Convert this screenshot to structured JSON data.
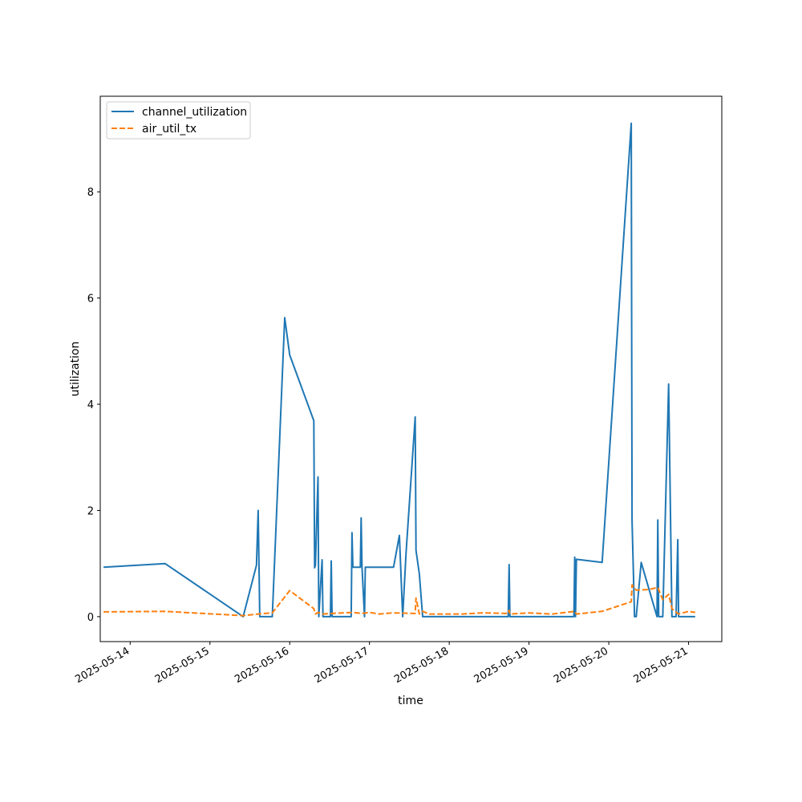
{
  "chart_data": {
    "type": "line",
    "xlabel": "time",
    "ylabel": "utilization",
    "xlim": [
      "2025-05-13T15:00",
      "2025-05-21T10:00"
    ],
    "ylim": [
      -0.47,
      9.8
    ],
    "x_ticks": [
      "2025-05-14",
      "2025-05-15",
      "2025-05-16",
      "2025-05-17",
      "2025-05-18",
      "2025-05-19",
      "2025-05-20",
      "2025-05-21"
    ],
    "y_ticks": [
      0,
      2,
      4,
      6,
      8
    ],
    "y_tick_labels": [
      "0",
      "2",
      "4",
      "6",
      "8"
    ],
    "grid": false,
    "legend_position": "top-left",
    "series": [
      {
        "name": "channel_utilization",
        "color": "#1f77b4",
        "style": "solid",
        "points": [
          [
            "2025-05-13T16:00",
            0.93
          ],
          [
            "2025-05-14T10:30",
            1.0
          ],
          [
            "2025-05-15T10:00",
            0.0
          ],
          [
            "2025-05-15T14:00",
            0.97
          ],
          [
            "2025-05-15T14:30",
            2.0
          ],
          [
            "2025-05-15T15:00",
            0.0
          ],
          [
            "2025-05-15T18:45",
            0.0
          ],
          [
            "2025-05-15T22:30",
            5.63
          ],
          [
            "2025-05-16T00:00",
            4.93
          ],
          [
            "2025-05-16T07:15",
            3.69
          ],
          [
            "2025-05-16T07:30",
            0.92
          ],
          [
            "2025-05-16T07:45",
            0.97
          ],
          [
            "2025-05-16T08:30",
            2.63
          ],
          [
            "2025-05-16T08:45",
            0.0
          ],
          [
            "2025-05-16T09:45",
            1.07
          ],
          [
            "2025-05-16T10:00",
            0.0
          ],
          [
            "2025-05-16T12:15",
            0.0
          ],
          [
            "2025-05-16T12:30",
            1.05
          ],
          [
            "2025-05-16T12:45",
            0.0
          ],
          [
            "2025-05-16T18:30",
            0.0
          ],
          [
            "2025-05-16T18:45",
            1.58
          ],
          [
            "2025-05-16T19:00",
            0.93
          ],
          [
            "2025-05-16T21:15",
            0.93
          ],
          [
            "2025-05-16T21:30",
            1.86
          ],
          [
            "2025-05-16T21:45",
            0.93
          ],
          [
            "2025-05-16T22:30",
            0.0
          ],
          [
            "2025-05-16T22:45",
            0.93
          ],
          [
            "2025-05-17T07:15",
            0.93
          ],
          [
            "2025-05-17T09:00",
            1.53
          ],
          [
            "2025-05-17T10:00",
            0.0
          ],
          [
            "2025-05-17T11:00",
            1.2
          ],
          [
            "2025-05-17T13:45",
            3.76
          ],
          [
            "2025-05-17T14:00",
            1.25
          ],
          [
            "2025-05-17T15:00",
            0.8
          ],
          [
            "2025-05-17T16:00",
            0.0
          ],
          [
            "2025-05-18T17:45",
            0.0
          ],
          [
            "2025-05-18T18:00",
            0.98
          ],
          [
            "2025-05-18T18:15",
            0.0
          ],
          [
            "2025-05-19T13:30",
            0.0
          ],
          [
            "2025-05-19T13:45",
            1.12
          ],
          [
            "2025-05-19T14:00",
            0.0
          ],
          [
            "2025-05-19T14:15",
            1.08
          ],
          [
            "2025-05-19T22:00",
            1.02
          ],
          [
            "2025-05-20T06:45",
            9.29
          ],
          [
            "2025-05-20T07:00",
            1.8
          ],
          [
            "2025-05-20T07:45",
            0.0
          ],
          [
            "2025-05-20T08:15",
            0.0
          ],
          [
            "2025-05-20T09:45",
            1.02
          ],
          [
            "2025-05-20T14:30",
            0.0
          ],
          [
            "2025-05-20T14:45",
            1.82
          ],
          [
            "2025-05-20T15:00",
            0.0
          ],
          [
            "2025-05-20T16:15",
            0.0
          ],
          [
            "2025-05-20T18:00",
            4.38
          ],
          [
            "2025-05-20T19:00",
            0.0
          ],
          [
            "2025-05-20T20:15",
            0.0
          ],
          [
            "2025-05-20T20:45",
            1.45
          ],
          [
            "2025-05-20T21:00",
            0.0
          ],
          [
            "2025-05-21T02:00",
            0.0
          ]
        ]
      },
      {
        "name": "air_util_tx",
        "color": "#ff7f0e",
        "style": "dashed",
        "points": [
          [
            "2025-05-13T16:00",
            0.09
          ],
          [
            "2025-05-14T10:30",
            0.1
          ],
          [
            "2025-05-15T10:00",
            0.02
          ],
          [
            "2025-05-15T14:30",
            0.05
          ],
          [
            "2025-05-15T18:45",
            0.07
          ],
          [
            "2025-05-16T00:00",
            0.49
          ],
          [
            "2025-05-16T07:15",
            0.15
          ],
          [
            "2025-05-16T07:45",
            0.05
          ],
          [
            "2025-05-16T08:30",
            0.08
          ],
          [
            "2025-05-16T10:00",
            0.05
          ],
          [
            "2025-05-16T12:30",
            0.06
          ],
          [
            "2025-05-16T18:45",
            0.08
          ],
          [
            "2025-05-16T21:45",
            0.06
          ],
          [
            "2025-05-17T00:00",
            0.08
          ],
          [
            "2025-05-17T03:00",
            0.05
          ],
          [
            "2025-05-17T07:00",
            0.07
          ],
          [
            "2025-05-17T13:45",
            0.06
          ],
          [
            "2025-05-17T14:00",
            0.35
          ],
          [
            "2025-05-17T15:00",
            0.05
          ],
          [
            "2025-05-17T16:00",
            0.1
          ],
          [
            "2025-05-17T18:00",
            0.05
          ],
          [
            "2025-05-18T04:00",
            0.05
          ],
          [
            "2025-05-18T10:00",
            0.07
          ],
          [
            "2025-05-18T17:45",
            0.06
          ],
          [
            "2025-05-18T18:00",
            0.12
          ],
          [
            "2025-05-18T18:15",
            0.05
          ],
          [
            "2025-05-19T00:00",
            0.07
          ],
          [
            "2025-05-19T07:00",
            0.05
          ],
          [
            "2025-05-19T13:45",
            0.1
          ],
          [
            "2025-05-19T14:15",
            0.05
          ],
          [
            "2025-05-19T22:00",
            0.1
          ],
          [
            "2025-05-20T06:45",
            0.28
          ],
          [
            "2025-05-20T07:00",
            0.6
          ],
          [
            "2025-05-20T08:15",
            0.5
          ],
          [
            "2025-05-20T12:00",
            0.51
          ],
          [
            "2025-05-20T14:45",
            0.55
          ],
          [
            "2025-05-20T16:15",
            0.32
          ],
          [
            "2025-05-20T18:00",
            0.42
          ],
          [
            "2025-05-20T19:00",
            0.15
          ],
          [
            "2025-05-20T21:00",
            0.05
          ],
          [
            "2025-05-21T00:00",
            0.1
          ],
          [
            "2025-05-21T02:00",
            0.08
          ]
        ]
      }
    ]
  }
}
